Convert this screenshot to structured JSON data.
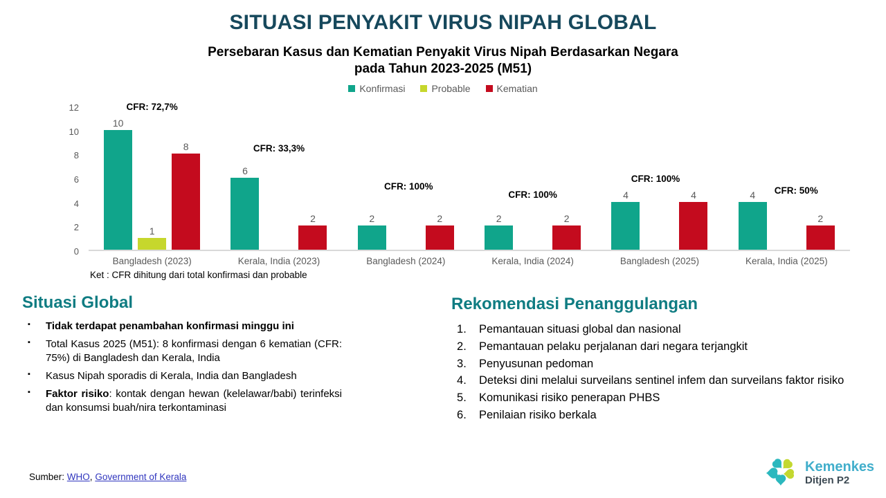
{
  "title": "SITUASI PENYAKIT VIRUS NIPAH GLOBAL",
  "subtitle_line1": "Persebaran Kasus dan Kematian Penyakit Virus Nipah Berdasarkan Negara",
  "subtitle_line2": "pada Tahun 2023-2025 (M51)",
  "chart_data": {
    "type": "bar",
    "title": "Persebaran Kasus dan Kematian Penyakit Virus Nipah Berdasarkan Negara pada Tahun 2023-2025 (M51)",
    "categories": [
      "Bangladesh (2023)",
      "Kerala, India (2023)",
      "Bangladesh (2024)",
      "Kerala, India (2024)",
      "Bangladesh (2025)",
      "Kerala, India (2025)"
    ],
    "series": [
      {
        "name": "Konfirmasi",
        "color": "#10A58B",
        "values": [
          10,
          6,
          2,
          2,
          4,
          4
        ]
      },
      {
        "name": "Probable",
        "color": "#C6D72D",
        "values": [
          1,
          null,
          null,
          null,
          null,
          null
        ]
      },
      {
        "name": "Kematian",
        "color": "#C40B1E",
        "values": [
          8,
          2,
          2,
          2,
          4,
          2
        ]
      }
    ],
    "annotations": [
      "CFR: 72,7%",
      "CFR: 33,3%",
      "CFR: 100%",
      "CFR: 100%",
      "CFR: 100%",
      "CFR: 50%"
    ],
    "ylim": [
      0,
      12
    ],
    "yticks": [
      0,
      2,
      4,
      6,
      8,
      10,
      12
    ],
    "grid": false,
    "legend_position": "top",
    "note": "Ket : CFR dihitung dari total konfirmasi dan probable"
  },
  "situasi": {
    "heading": "Situasi Global",
    "bullets": [
      {
        "bold": "Tidak terdapat penambahan konfirmasi minggu ini",
        "normal": ""
      },
      {
        "bold": "",
        "normal": "Total Kasus 2025 (M51): 8 konfirmasi dengan 6 kematian (CFR: 75%) di Bangladesh dan Kerala, India"
      },
      {
        "bold": "",
        "normal": "Kasus Nipah sporadis di Kerala, India dan Bangladesh"
      },
      {
        "bold": "Faktor risiko",
        "normal": ": kontak dengan hewan (kelelawar/babi) terinfeksi dan konsumsi buah/nira terkontaminasi"
      }
    ]
  },
  "rekomendasi": {
    "heading": "Rekomendasi Penanggulangan",
    "items": [
      "Pemantauan situasi global dan nasional",
      "Pemantauan pelaku perjalanan dari negara terjangkit",
      "Penyusunan pedoman",
      "Deteksi dini melalui surveilans sentinel infem dan surveilans faktor risiko",
      "Komunikasi risiko penerapan PHBS",
      "Penilaian risiko berkala"
    ]
  },
  "footer": {
    "label": "Sumber:",
    "link1": "WHO",
    "separator": ", ",
    "link2": "Government of Kerala"
  },
  "logo": {
    "brand": "Kemenkes",
    "unit": "Ditjen P2"
  },
  "colors": {
    "title": "#16485C",
    "section_heading": "#0F7C82",
    "axis_text": "#595959",
    "axis_line": "#D9D9D9",
    "konfirmasi": "#10A58B",
    "probable": "#C6D72D",
    "kematian": "#C40B1E",
    "link": "#2F35BE",
    "logo_teal": "#2BB8BE",
    "logo_lime": "#C3D830",
    "brand_text": "#41AECB",
    "unit_text": "#3D4A53"
  }
}
